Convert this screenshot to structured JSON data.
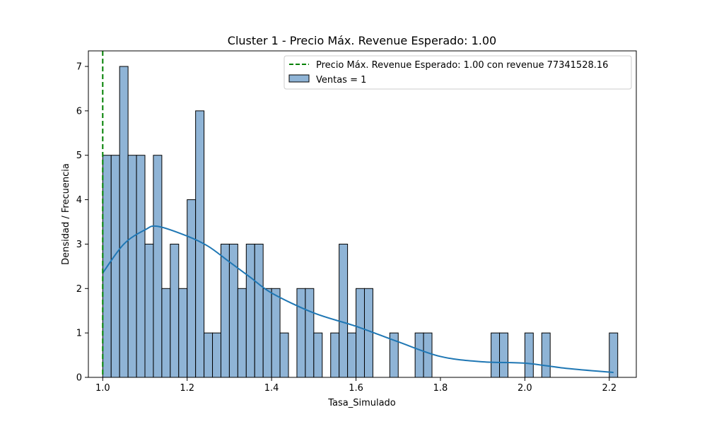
{
  "chart_data": {
    "type": "bar",
    "title": "Cluster 1 - Precio Máx. Revenue Esperado: 1.00",
    "xlabel": "Tasa_Simulado",
    "ylabel": "Densidad / Frecuencia",
    "xlim": [
      0.966,
      2.264
    ],
    "ylim": [
      0,
      7.35
    ],
    "xticks": [
      "1.0",
      "1.2",
      "1.4",
      "1.6",
      "1.8",
      "2.0",
      "2.2"
    ],
    "yticks": [
      "0",
      "1",
      "2",
      "3",
      "4",
      "5",
      "6",
      "7"
    ],
    "grid": false,
    "legend_position": "top-right",
    "legend": [
      {
        "label": "Precio Máx. Revenue Esperado: 1.00 con revenue 77341528.16",
        "style": "dashed-line",
        "color": "#008000"
      },
      {
        "label": "Ventas = 1",
        "style": "patch",
        "color": "#8fb4d6"
      }
    ],
    "vline": {
      "x": 1.0,
      "color": "#008000"
    },
    "bar_color": "#8fb4d6",
    "bar_edge_color": "#000000",
    "kde_color": "#1f77b4",
    "bins_start": 1.0,
    "bin_width": 0.02,
    "histogram_counts": [
      5,
      5,
      7,
      5,
      5,
      3,
      5,
      2,
      3,
      2,
      4,
      6,
      1,
      1,
      3,
      3,
      2,
      3,
      3,
      2,
      2,
      1,
      0,
      2,
      2,
      1,
      0,
      1,
      3,
      1,
      2,
      2,
      0,
      0,
      1,
      0,
      0,
      1,
      1,
      0,
      0,
      0,
      0,
      0,
      0,
      0,
      1,
      1,
      0,
      0,
      1,
      0,
      1,
      0,
      0,
      0,
      0,
      0,
      0,
      0,
      1
    ],
    "kde_line": {
      "x": [
        1.0,
        1.05,
        1.1,
        1.13,
        1.2,
        1.25,
        1.3,
        1.35,
        1.4,
        1.5,
        1.6,
        1.7,
        1.8,
        1.9,
        2.0,
        2.1,
        2.21
      ],
      "y": [
        2.35,
        3.0,
        3.32,
        3.4,
        3.18,
        2.95,
        2.6,
        2.25,
        1.9,
        1.45,
        1.15,
        0.8,
        0.47,
        0.35,
        0.32,
        0.2,
        0.11
      ]
    }
  }
}
